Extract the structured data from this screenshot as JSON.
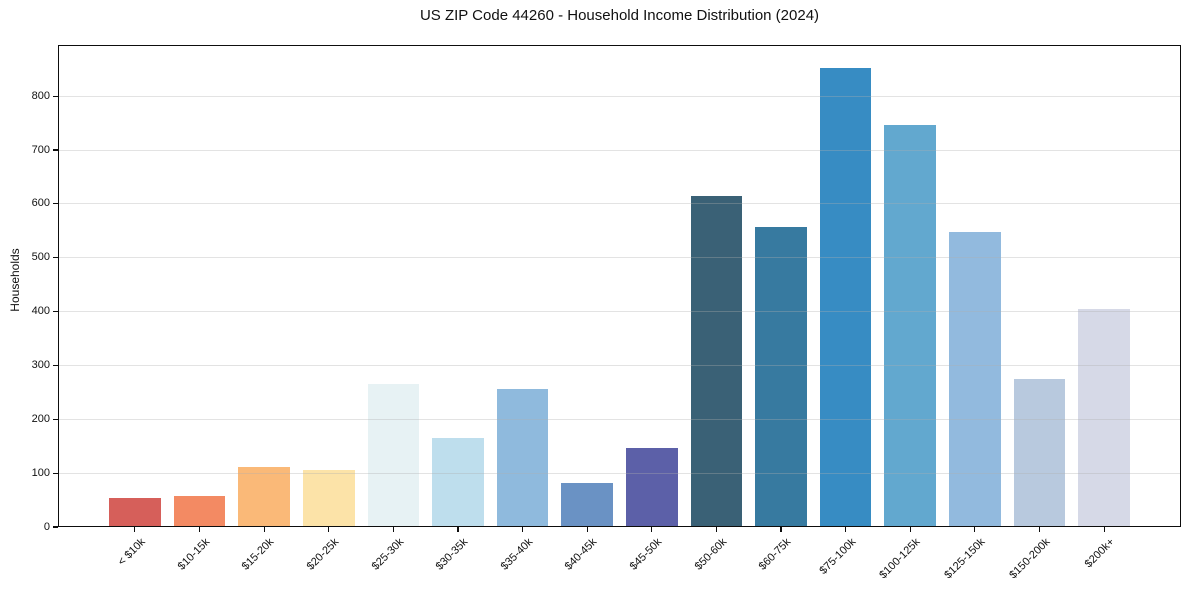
{
  "chart_data": {
    "type": "bar",
    "title": "US ZIP Code 44260 - Household Income Distribution (2024)",
    "xlabel": "",
    "ylabel": "Households",
    "categories": [
      "< $10k",
      "$10-15k",
      "$15-20k",
      "$20-25k",
      "$25-30k",
      "$30-35k",
      "$35-40k",
      "$40-45k",
      "$45-50k",
      "$50-60k",
      "$60-75k",
      "$75-100k",
      "$100-125k",
      "$125-150k",
      "$150-200k",
      "$200k+"
    ],
    "values": [
      54,
      57,
      111,
      106,
      265,
      166,
      256,
      82,
      147,
      615,
      557,
      852,
      747,
      548,
      275,
      405
    ],
    "bar_colors": [
      "#d65f5a",
      "#f38a63",
      "#fab978",
      "#fce3a8",
      "#e7f2f4",
      "#bedeed",
      "#8fbadd",
      "#6a92c4",
      "#5c60a8",
      "#3a6176",
      "#377aa0",
      "#378cc3",
      "#62a8cf",
      "#92bade",
      "#b8c9de",
      "#d6d9e7"
    ],
    "yticks": [
      0,
      100,
      200,
      300,
      400,
      500,
      600,
      700,
      800
    ],
    "ylim": [
      0,
      895
    ],
    "bar_width_fraction": 0.8,
    "grid": "horizontal",
    "grid_color": "#b0b0b0",
    "legend": "none",
    "background": "#ffffff",
    "axis_color": "#0d0d0d",
    "x_label_rotation_deg": 45
  }
}
